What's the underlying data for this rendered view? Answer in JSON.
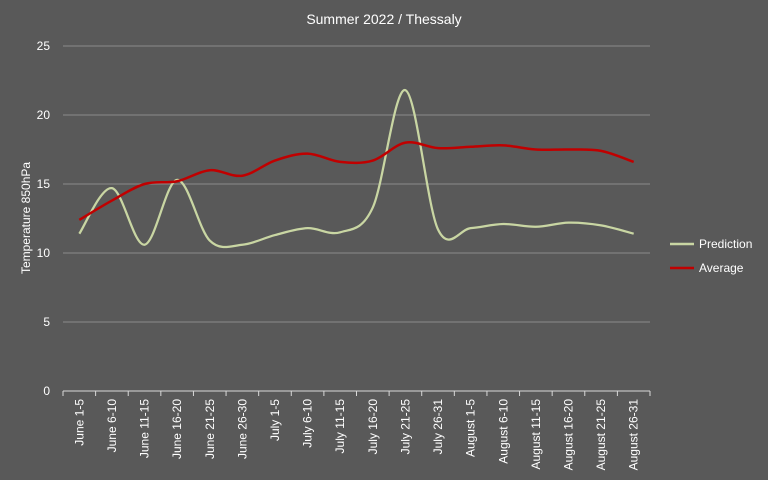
{
  "chart_data": {
    "type": "line",
    "title": "Summer 2022 / Thessaly",
    "xlabel": "",
    "ylabel": "Temperature 850hPa",
    "ylim": [
      0,
      25
    ],
    "yticks": [
      "0",
      "5",
      "10",
      "15",
      "20",
      "25"
    ],
    "grid": true,
    "legend_position": "right",
    "categories": [
      "June 1-5",
      "June 6-10",
      "June 11-15",
      "June 16-20",
      "June 21-25",
      "June 26-30",
      "July 1-5",
      "July 6-10",
      "July 11-15",
      "July 16-20",
      "July 21-25",
      "July 26-31",
      "August 1-5",
      "August 6-10",
      "August 11-15",
      "August 16-20",
      "August 21-25",
      "August 26-31"
    ],
    "series": [
      {
        "name": "Prediction",
        "color": "#c9d6a3",
        "values": [
          11.4,
          14.7,
          10.6,
          15.3,
          10.9,
          10.6,
          11.3,
          11.8,
          11.5,
          13.3,
          21.8,
          11.7,
          11.8,
          12.1,
          11.9,
          12.2,
          12.0,
          11.4
        ]
      },
      {
        "name": "Average",
        "color": "#c00000",
        "values": [
          12.4,
          13.8,
          15.0,
          15.2,
          16.0,
          15.6,
          16.7,
          17.2,
          16.6,
          16.7,
          18.0,
          17.6,
          17.7,
          17.8,
          17.5,
          17.5,
          17.4,
          16.6
        ]
      }
    ]
  },
  "colors": {
    "background": "#595959",
    "gridline": "#8c8c8c",
    "axis": "#d9d9d9"
  }
}
